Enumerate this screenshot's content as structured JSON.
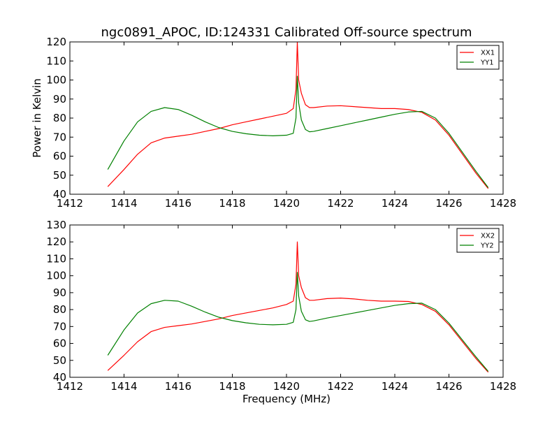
{
  "chart_data": [
    {
      "type": "line",
      "title": "ngc0891_APOC, ID:124331 Calibrated Off-source spectrum",
      "xlabel": "",
      "ylabel": "Power in Kelvin",
      "xlim": [
        1412,
        1428
      ],
      "ylim": [
        40,
        120
      ],
      "xticks": [
        "1412",
        "1414",
        "1416",
        "1418",
        "1420",
        "1422",
        "1424",
        "1426",
        "1428"
      ],
      "yticks": [
        "40",
        "50",
        "60",
        "70",
        "80",
        "90",
        "100",
        "110",
        "120"
      ],
      "legend_position": "top-right",
      "grid": false,
      "series": [
        {
          "name": "XX1",
          "color": "#ff0000",
          "x": [
            1413.4,
            1414.0,
            1414.5,
            1415.0,
            1415.5,
            1416.0,
            1416.5,
            1417.0,
            1417.5,
            1418.0,
            1418.5,
            1419.0,
            1419.5,
            1420.0,
            1420.25,
            1420.35,
            1420.4,
            1420.45,
            1420.55,
            1420.7,
            1420.85,
            1421.0,
            1421.5,
            1422.0,
            1422.5,
            1423.0,
            1423.5,
            1424.0,
            1424.5,
            1425.0,
            1425.5,
            1426.0,
            1426.5,
            1427.0,
            1427.45
          ],
          "y": [
            44,
            53,
            61,
            67,
            69.5,
            70.5,
            71.5,
            73,
            74.5,
            76.5,
            78,
            79.5,
            81,
            82.5,
            85,
            95,
            120,
            100,
            93,
            87,
            85.5,
            85.5,
            86.3,
            86.5,
            86,
            85.5,
            85,
            85,
            84.5,
            83,
            79,
            71,
            61,
            51,
            43
          ]
        },
        {
          "name": "YY1",
          "color": "#008000",
          "x": [
            1413.4,
            1414.0,
            1414.5,
            1415.0,
            1415.5,
            1416.0,
            1416.5,
            1417.0,
            1417.5,
            1418.0,
            1418.5,
            1419.0,
            1419.5,
            1420.0,
            1420.25,
            1420.35,
            1420.4,
            1420.45,
            1420.55,
            1420.7,
            1420.85,
            1421.0,
            1421.5,
            1422.0,
            1422.5,
            1423.0,
            1423.5,
            1424.0,
            1424.5,
            1425.0,
            1425.5,
            1426.0,
            1426.5,
            1427.0,
            1427.45
          ],
          "y": [
            53,
            68,
            78,
            83.5,
            85.5,
            84.5,
            81.5,
            78,
            75,
            73,
            71.8,
            71,
            70.7,
            71,
            72,
            80,
            102,
            88,
            79,
            74,
            72.8,
            73,
            74.5,
            76,
            77.5,
            79,
            80.5,
            82,
            83.2,
            83.5,
            80,
            72,
            62,
            52,
            43.5
          ]
        }
      ]
    },
    {
      "type": "line",
      "title": "",
      "xlabel": "Frequency (MHz)",
      "ylabel": "",
      "xlim": [
        1412,
        1428
      ],
      "ylim": [
        40,
        130
      ],
      "xticks": [
        "1412",
        "1414",
        "1416",
        "1418",
        "1420",
        "1422",
        "1424",
        "1426",
        "1428"
      ],
      "yticks": [
        "40",
        "50",
        "60",
        "70",
        "80",
        "90",
        "100",
        "110",
        "120",
        "130"
      ],
      "legend_position": "top-right",
      "grid": false,
      "series": [
        {
          "name": "XX2",
          "color": "#ff0000",
          "x": [
            1413.4,
            1414.0,
            1414.5,
            1415.0,
            1415.5,
            1416.0,
            1416.5,
            1417.0,
            1417.5,
            1418.0,
            1418.5,
            1419.0,
            1419.5,
            1420.0,
            1420.25,
            1420.35,
            1420.4,
            1420.45,
            1420.55,
            1420.7,
            1420.85,
            1421.0,
            1421.5,
            1422.0,
            1422.5,
            1423.0,
            1423.5,
            1424.0,
            1424.5,
            1425.0,
            1425.5,
            1426.0,
            1426.5,
            1427.0,
            1427.45
          ],
          "y": [
            44,
            53,
            61,
            67,
            69.5,
            70.5,
            71.5,
            73,
            74.5,
            76.5,
            78,
            79.5,
            81,
            83,
            85,
            95,
            120,
            100,
            93,
            87,
            85.5,
            85.5,
            86.5,
            86.8,
            86.3,
            85.5,
            85,
            85,
            84.8,
            83,
            79,
            71,
            61,
            51,
            43
          ]
        },
        {
          "name": "YY2",
          "color": "#008000",
          "x": [
            1413.4,
            1414.0,
            1414.5,
            1415.0,
            1415.5,
            1416.0,
            1416.5,
            1417.0,
            1417.5,
            1418.0,
            1418.5,
            1419.0,
            1419.5,
            1420.0,
            1420.25,
            1420.35,
            1420.4,
            1420.45,
            1420.55,
            1420.7,
            1420.85,
            1421.0,
            1421.5,
            1422.0,
            1422.5,
            1423.0,
            1423.5,
            1424.0,
            1424.5,
            1425.0,
            1425.5,
            1426.0,
            1426.5,
            1427.0,
            1427.45
          ],
          "y": [
            53,
            68,
            78,
            83.5,
            85.5,
            85,
            82,
            78.5,
            75.5,
            73.5,
            72.2,
            71.3,
            71,
            71.3,
            72.5,
            80,
            102,
            88,
            79,
            74,
            73,
            73.3,
            75,
            76.5,
            78,
            79.5,
            81,
            82.5,
            83.5,
            83.8,
            80,
            72,
            62,
            52,
            43.5
          ]
        }
      ]
    }
  ]
}
